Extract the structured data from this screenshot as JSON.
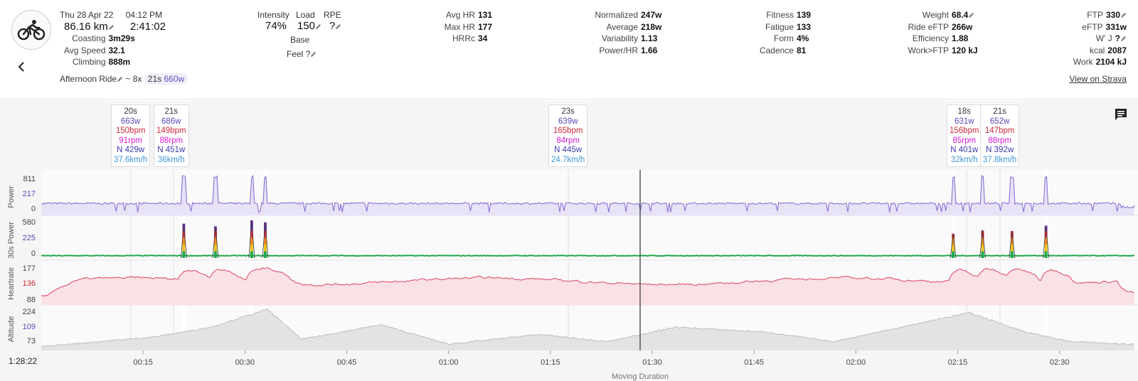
{
  "activity": {
    "date": "Thu 28 Apr 22",
    "time": "04:12 PM",
    "distance": "86.16 km",
    "duration": "2:41:02",
    "name": "Afternoon Ride",
    "interval_summary": "~ 8x",
    "interval_duration": "21s",
    "interval_power": "660w"
  },
  "stats_left": [
    {
      "label": "Coasting",
      "value": "3m29s"
    },
    {
      "label": "Avg Speed",
      "value": "32.1"
    },
    {
      "label": "Climbing",
      "value": "888m"
    }
  ],
  "load_block": {
    "intensity_label": "Intensity",
    "intensity_value": "74%",
    "load_label": "Load",
    "load_value": "150",
    "rpe_label": "RPE",
    "rpe_value": "?",
    "base_label": "Base",
    "feel_label": "Feel",
    "feel_value": "?"
  },
  "hr_block": [
    {
      "label": "Avg HR",
      "value": "131"
    },
    {
      "label": "Max HR",
      "value": "177"
    },
    {
      "label": "HRRc",
      "value": "34"
    }
  ],
  "power_block": [
    {
      "label": "Normalized",
      "value": "247w"
    },
    {
      "label": "Average",
      "value": "218w"
    },
    {
      "label": "Variability",
      "value": "1.13"
    },
    {
      "label": "Power/HR",
      "value": "1.66"
    }
  ],
  "fitness_block": [
    {
      "label": "Fitness",
      "value": "139"
    },
    {
      "label": "Fatigue",
      "value": "133"
    },
    {
      "label": "Form",
      "value": "4%"
    },
    {
      "label": "Cadence",
      "value": "81"
    }
  ],
  "weight_block": [
    {
      "label": "Weight",
      "value": "68.4"
    },
    {
      "label": "Ride eFTP",
      "value": "266w"
    },
    {
      "label": "Efficiency",
      "value": "1.88"
    },
    {
      "label": "Work>FTP",
      "value": "120 kJ"
    }
  ],
  "ftp_block": [
    {
      "label": "FTP",
      "value": "330"
    },
    {
      "label": "eFTP",
      "value": "331w"
    },
    {
      "label": "W' J",
      "value": "?"
    },
    {
      "label": "kcal",
      "value": "2087"
    },
    {
      "label": "Work",
      "value": "2104 kJ"
    }
  ],
  "strava_link": "View on Strava",
  "intervals": [
    {
      "dur": "20s",
      "w": "663w",
      "bpm": "150bpm",
      "rpm": "91rpm",
      "nw": "N 429w",
      "kmh": "37.6km/h"
    },
    {
      "dur": "21s",
      "w": "686w",
      "bpm": "149bpm",
      "rpm": "88rpm",
      "nw": "N 451w",
      "kmh": "36km/h"
    },
    {
      "dur": "23s",
      "w": "639w",
      "bpm": "165bpm",
      "rpm": "84rpm",
      "nw": "N 445w",
      "kmh": "24.7km/h"
    },
    {
      "dur": "18s",
      "w": "631w",
      "bpm": "156bpm",
      "rpm": "85rpm",
      "nw": "N 401w",
      "kmh": "32km/h"
    },
    {
      "dur": "21s",
      "w": "652w",
      "bpm": "147bpm",
      "rpm": "88rpm",
      "nw": "N 392w",
      "kmh": "37.8km/h"
    }
  ],
  "charts": {
    "power": {
      "title": "Power",
      "ticks": [
        "811",
        "217",
        "0"
      ]
    },
    "power30": {
      "title": "30s Power",
      "ticks": [
        "580",
        "225",
        "0"
      ]
    },
    "heartrate": {
      "title": "Heartrate",
      "ticks": [
        "177",
        "136",
        "88"
      ]
    },
    "altitude": {
      "title": "Altitude",
      "ticks": [
        "224",
        "109",
        "73"
      ]
    }
  },
  "x_ticks": [
    "00:15",
    "00:30",
    "00:45",
    "01:00",
    "01:15",
    "01:30",
    "01:45",
    "02:00",
    "02:15",
    "02:30"
  ],
  "cursor_time": "1:28:22",
  "x_axis_label": "Moving Duration",
  "colors": {
    "power": "#8a6fd6",
    "heartrate": "#e0506e",
    "altitude": "#bdbdbd",
    "power30_base": "#21a94a"
  }
}
